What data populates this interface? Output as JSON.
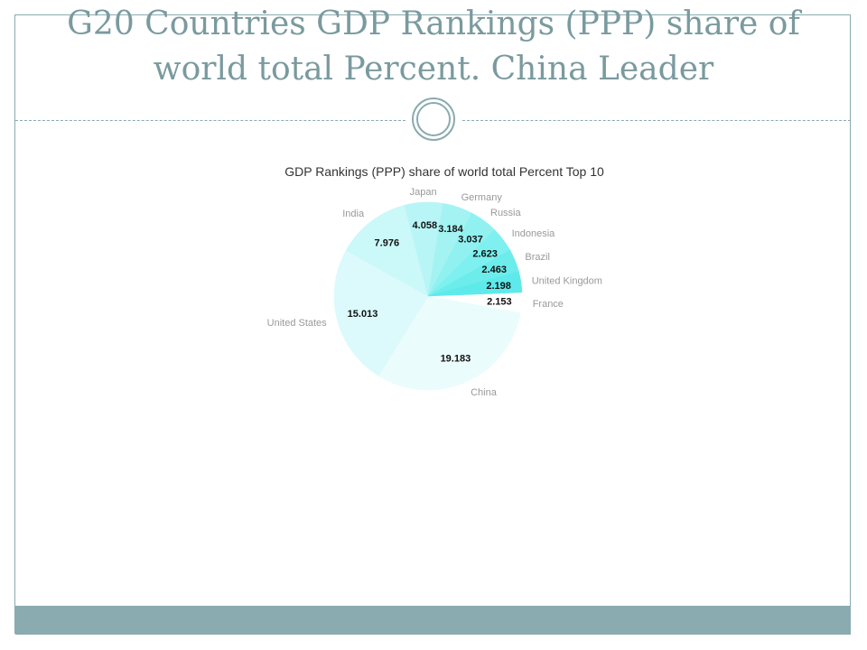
{
  "slide": {
    "title_line1": "G20 Countries  GDP Rankings (PPP) share of",
    "title_line2": "world total Percent. China Leader"
  },
  "colors": {
    "accent": "#8aabb0",
    "title": "#7a9a9e",
    "value_label": "#111111",
    "category_label": "#999999"
  },
  "chart_data": {
    "type": "pie",
    "title": "GDP Rankings (PPP) share of world total Percent Top 10",
    "slices": [
      {
        "label": "France",
        "value": 2.153,
        "color": "#ffffff"
      },
      {
        "label": "China",
        "value": 19.183,
        "color": "#ebfcfc"
      },
      {
        "label": "United States",
        "value": 15.013,
        "color": "#dcfafb"
      },
      {
        "label": "India",
        "value": 7.976,
        "color": "#cbf8f9"
      },
      {
        "label": "Japan",
        "value": 4.058,
        "color": "#b8f5f6"
      },
      {
        "label": "Germany",
        "value": 3.184,
        "color": "#a4f3f3"
      },
      {
        "label": "Russia",
        "value": 3.037,
        "color": "#91f1f1"
      },
      {
        "label": "Indonesia",
        "value": 2.623,
        "color": "#7ef0ef"
      },
      {
        "label": "Brazil",
        "value": 2.463,
        "color": "#6decec"
      },
      {
        "label": "United Kingdom",
        "value": 2.198,
        "color": "#5eeaea"
      }
    ]
  }
}
